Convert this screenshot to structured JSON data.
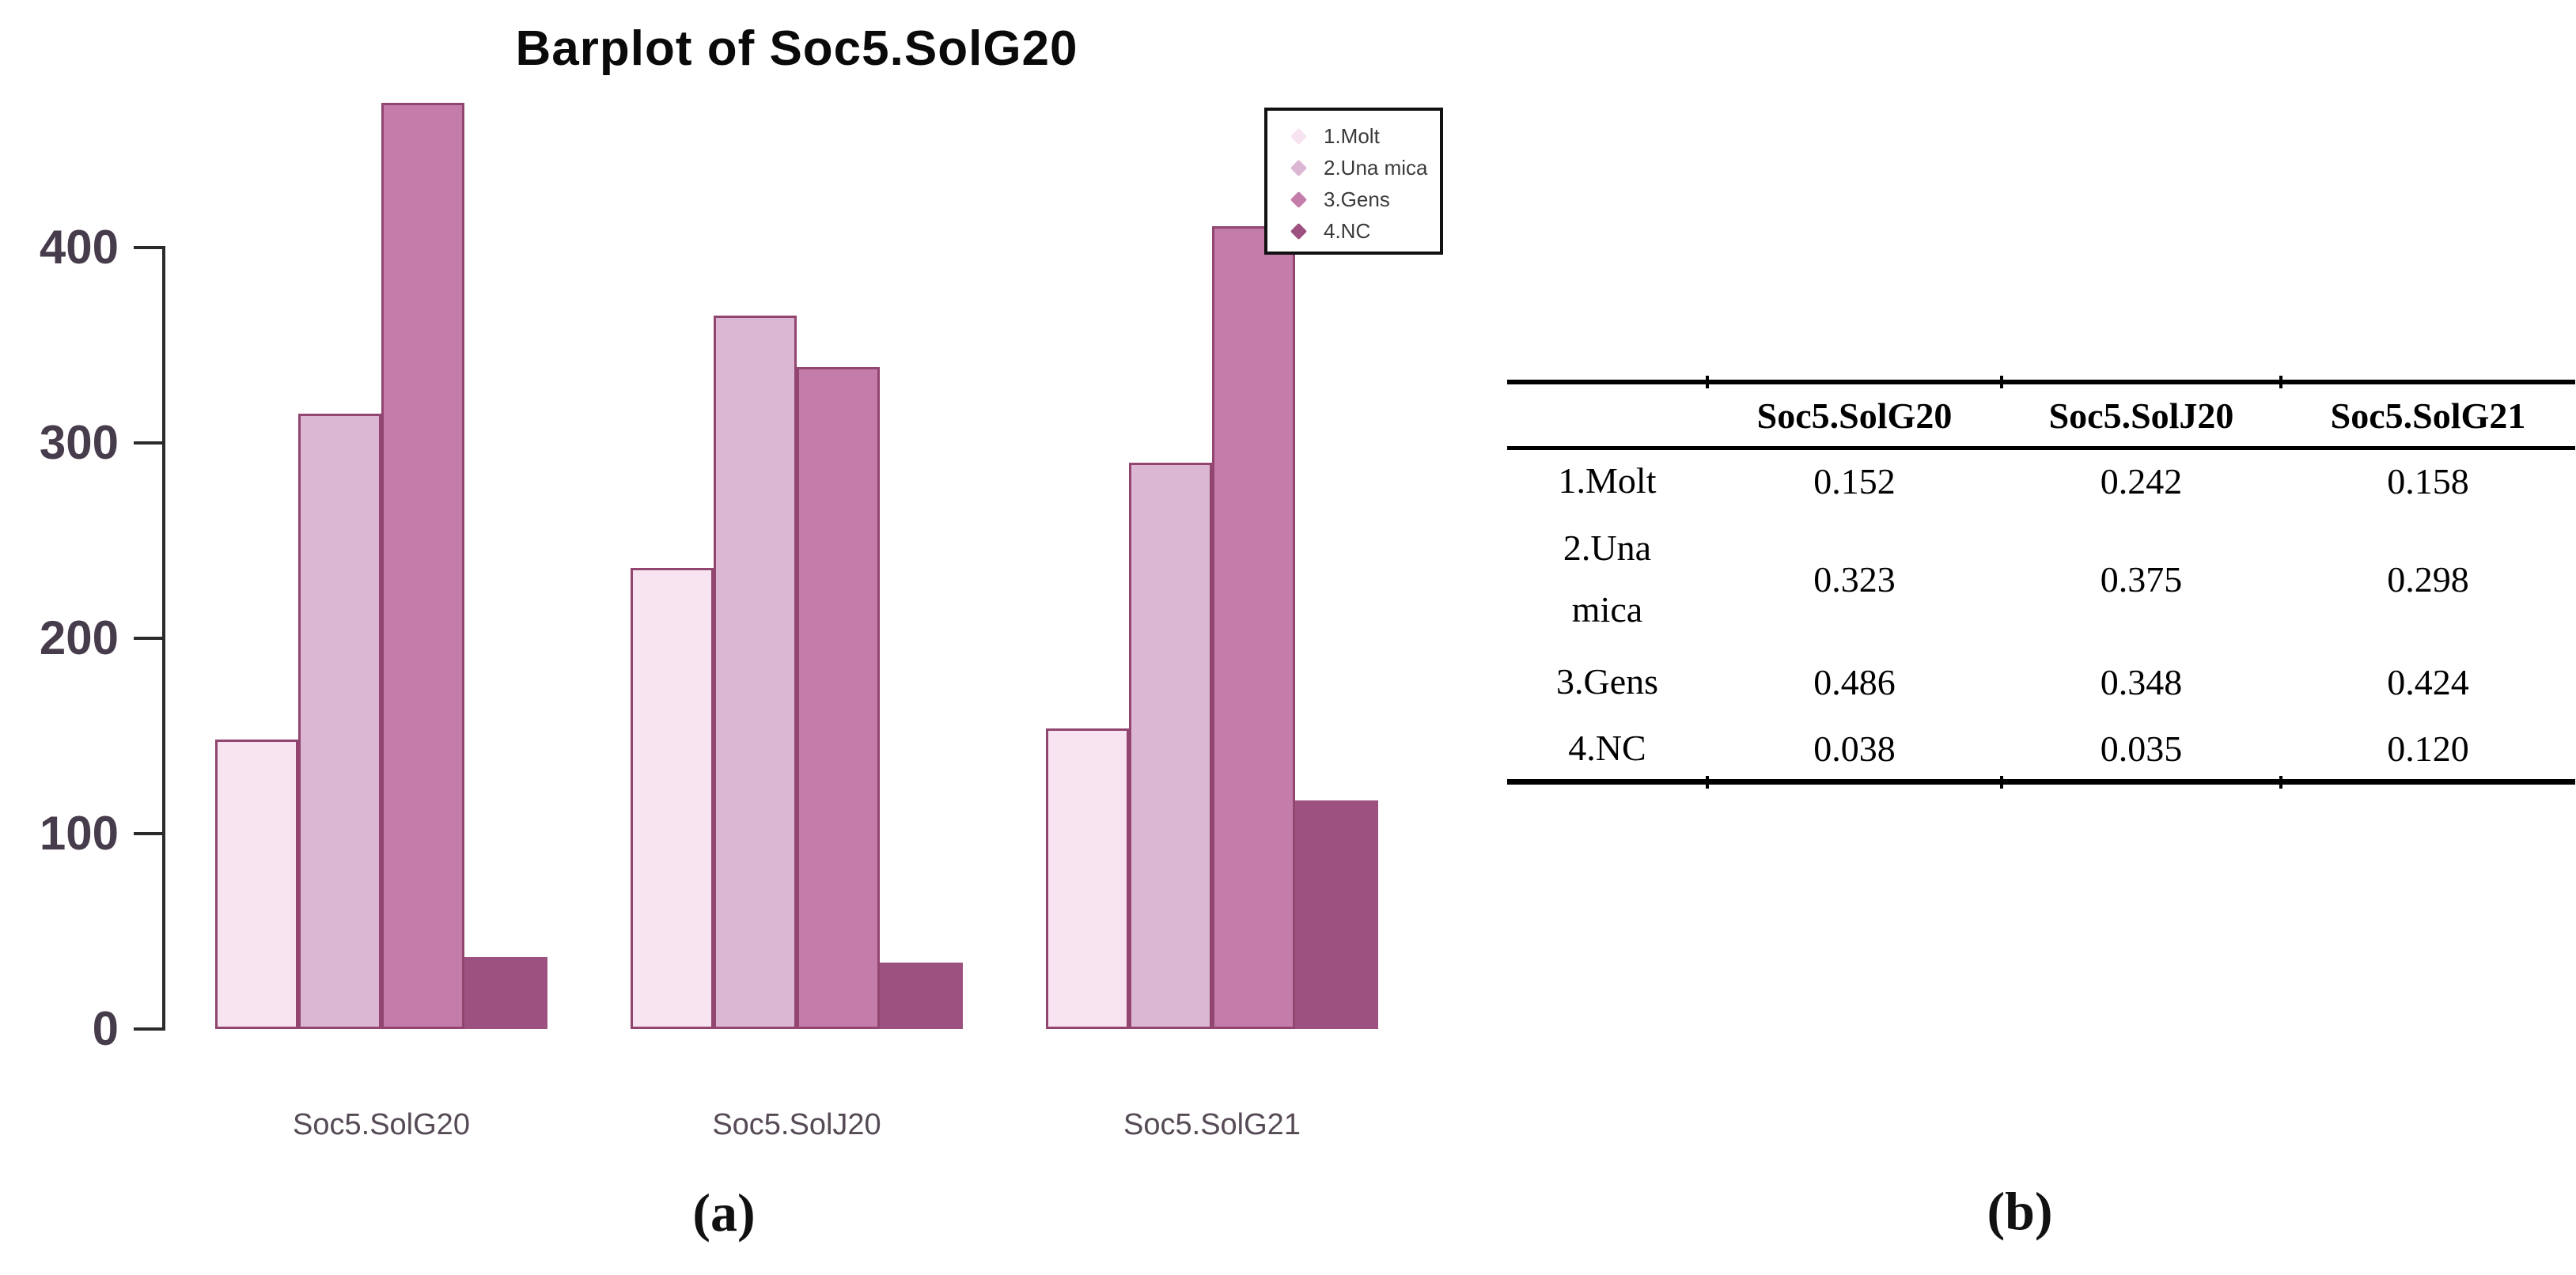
{
  "figure": {
    "caption_a": "(a)",
    "caption_b": "(b)"
  },
  "colors": {
    "background": "#ffffff",
    "bar_border": "#91456f",
    "axis": "#2b2b2b",
    "y_tick_label": "#473c4b",
    "x_category_label": "#564a56",
    "legend_border": "#111111",
    "legend_text": "#3a3a3a",
    "table_rule": "#000000",
    "table_text": "#000000",
    "title": "#0a0a0a",
    "caption": "#111111"
  },
  "chart_data": {
    "type": "bar",
    "title": "Barplot of Soc5.SolG20",
    "xlabel": "",
    "ylabel": "",
    "categories": [
      "Soc5.SolG20",
      "Soc5.SolJ20",
      "Soc5.SolG21"
    ],
    "series": [
      {
        "name": "1.Molt",
        "color": "#f7e4f0",
        "border": "#91456f",
        "values": [
          148,
          236,
          154
        ]
      },
      {
        "name": "2.Una mica",
        "color": "#dcb7d4",
        "border": "#91456f",
        "values": [
          315,
          365,
          290
        ]
      },
      {
        "name": "3.Gens",
        "color": "#c47dab",
        "border": "#91456f",
        "values": [
          474,
          339,
          411
        ]
      },
      {
        "name": "4.NC",
        "color": "#9d5180",
        "border": "#9d5180",
        "values": [
          37,
          34,
          117
        ]
      }
    ],
    "ylim": [
      0,
      400
    ],
    "yticks": [
      0,
      100,
      200,
      300,
      400
    ],
    "grid": false,
    "legend_position": "top-right"
  },
  "table": {
    "columns": [
      "",
      "Soc5.SolG20",
      "Soc5.SolJ20",
      "Soc5.SolG21"
    ],
    "rows": [
      {
        "label": "1.Molt",
        "values": [
          "0.152",
          "0.242",
          "0.158"
        ]
      },
      {
        "label": "2.Una mica",
        "values": [
          "0.323",
          "0.375",
          "0.298"
        ]
      },
      {
        "label": "3.Gens",
        "values": [
          "0.486",
          "0.348",
          "0.424"
        ]
      },
      {
        "label": "4.NC",
        "values": [
          "0.038",
          "0.035",
          "0.120"
        ]
      }
    ]
  }
}
